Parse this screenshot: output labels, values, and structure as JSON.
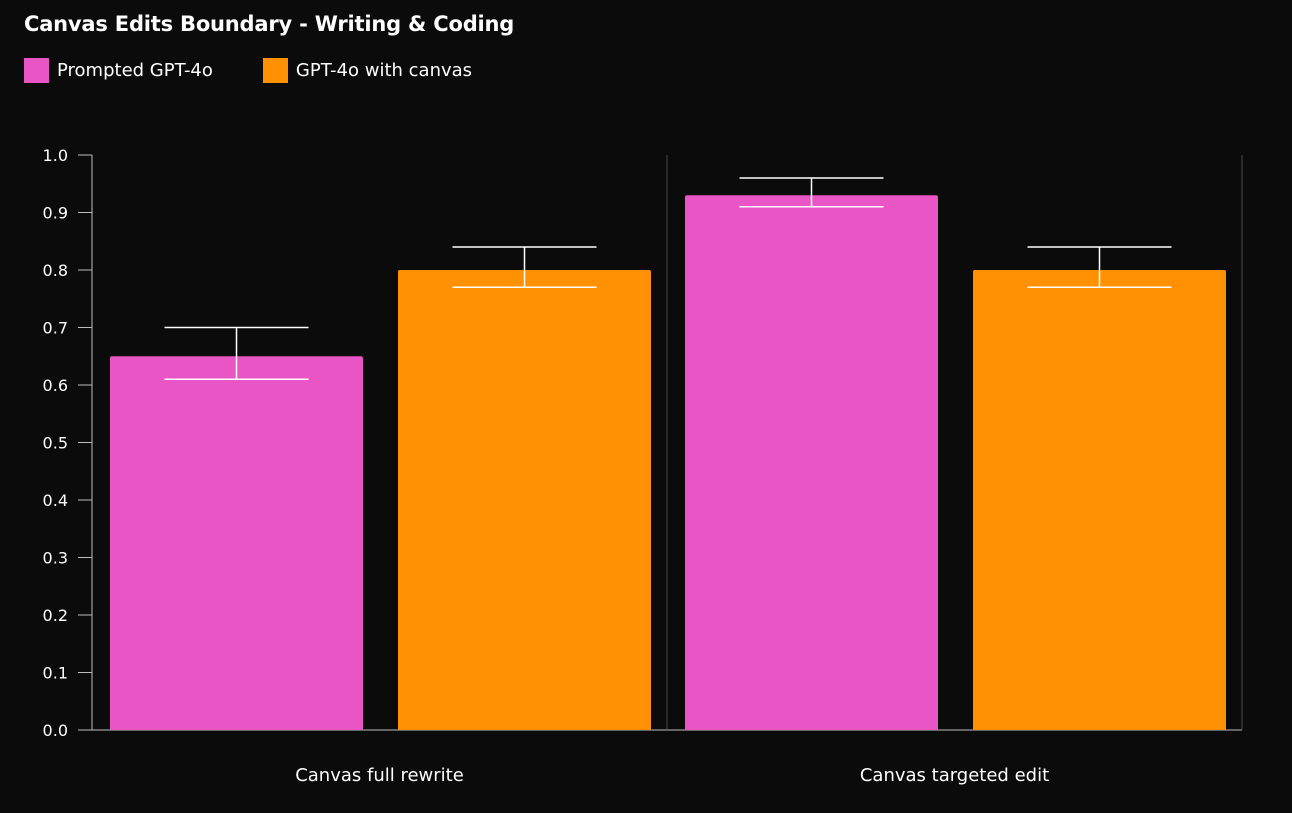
{
  "chart_data": {
    "type": "bar",
    "title": "Canvas Edits Boundary - Writing & Coding",
    "categories": [
      "Canvas full rewrite",
      "Canvas targeted edit"
    ],
    "series": [
      {
        "name": "Prompted GPT-4o",
        "color": "#e955c4",
        "values": [
          0.65,
          0.93
        ],
        "error_low": [
          0.61,
          0.91
        ],
        "error_high": [
          0.7,
          0.96
        ]
      },
      {
        "name": "GPT-4o with canvas",
        "color": "#ff9102",
        "values": [
          0.8,
          0.8
        ],
        "error_low": [
          0.77,
          0.77
        ],
        "error_high": [
          0.84,
          0.84
        ]
      }
    ],
    "ylim": [
      0,
      1.0
    ],
    "yticks": [
      "0.0",
      "0.1",
      "0.2",
      "0.3",
      "0.4",
      "0.5",
      "0.6",
      "0.7",
      "0.8",
      "0.9",
      "1.0"
    ],
    "xlabel": "",
    "ylabel": "",
    "legend_position": "top-left",
    "grid": false
  }
}
